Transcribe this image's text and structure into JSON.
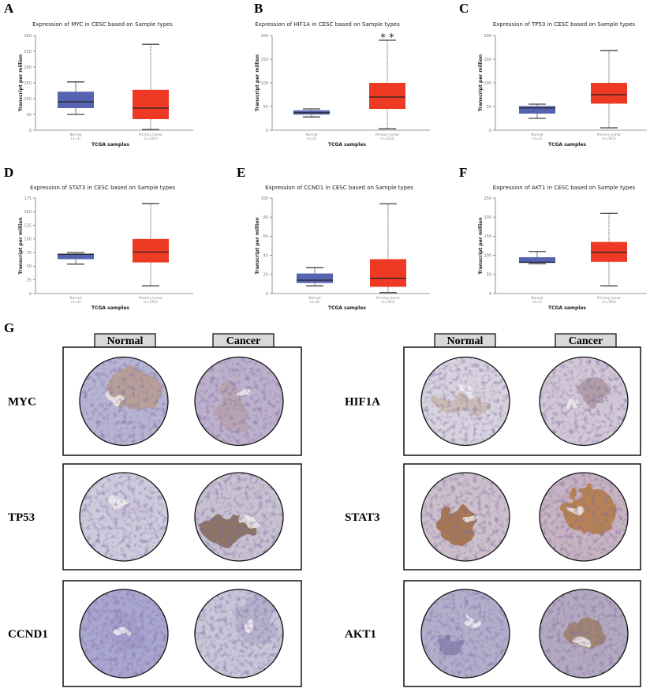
{
  "chart_data": [
    {
      "panel": "A",
      "type": "box",
      "title": "Expression of MYC in CESC based on Sample types",
      "ylabel": "Transcript per million",
      "xlabel": "TCGA samples",
      "categories": [
        "Normal",
        "Primary tumor"
      ],
      "category_counts": [
        "(n=3)",
        "(n=303)"
      ],
      "ylim": [
        0,
        300
      ],
      "yticks": [
        0,
        50,
        100,
        150,
        200,
        250,
        300
      ],
      "annotation": "",
      "boxes": [
        {
          "min": 50,
          "q1": 70,
          "median": 90,
          "q3": 122,
          "max": 153,
          "color": "#5663b0"
        },
        {
          "min": 2,
          "q1": 35,
          "median": 70,
          "q3": 128,
          "max": 272,
          "color": "#ee3a24"
        }
      ]
    },
    {
      "panel": "B",
      "type": "box",
      "title": "Expression of HIF1A in CESC based on Sample types",
      "ylabel": "Transcript per million",
      "xlabel": "TCGA samples",
      "categories": [
        "Normal",
        "Primary tumor"
      ],
      "category_counts": [
        "(n=3)",
        "(n=303)"
      ],
      "ylim": [
        0,
        200
      ],
      "yticks": [
        0,
        50,
        100,
        150,
        200
      ],
      "annotation": "* *",
      "boxes": [
        {
          "min": 28,
          "q1": 33,
          "median": 37,
          "q3": 42,
          "max": 45,
          "color": "#5663b0"
        },
        {
          "min": 3,
          "q1": 45,
          "median": 70,
          "q3": 100,
          "max": 190,
          "color": "#ee3a24"
        }
      ]
    },
    {
      "panel": "C",
      "type": "box",
      "title": "Expression of TP53 in CESC based on Sample types",
      "ylabel": "Transcript per million",
      "xlabel": "TCGA samples",
      "categories": [
        "Normal",
        "Primary tumor"
      ],
      "category_counts": [
        "(n=3)",
        "(n=303)"
      ],
      "ylim": [
        0,
        200
      ],
      "yticks": [
        0,
        50,
        100,
        150,
        200
      ],
      "annotation": "",
      "boxes": [
        {
          "min": 25,
          "q1": 35,
          "median": 47,
          "q3": 51,
          "max": 55,
          "color": "#5663b0"
        },
        {
          "min": 5,
          "q1": 56,
          "median": 75,
          "q3": 100,
          "max": 168,
          "color": "#ee3a24"
        }
      ]
    },
    {
      "panel": "D",
      "type": "box",
      "title": "Expression of STAT3 in CESC based on Sample types",
      "ylabel": "Transcript per million",
      "xlabel": "TCGA samples",
      "categories": [
        "Normal",
        "Primary tumor"
      ],
      "category_counts": [
        "(n=3)",
        "(n=303)"
      ],
      "ylim": [
        0,
        175
      ],
      "yticks": [
        0,
        25,
        50,
        75,
        100,
        125,
        150,
        175
      ],
      "annotation": "",
      "boxes": [
        {
          "min": 54,
          "q1": 63,
          "median": 72,
          "q3": 73,
          "max": 75,
          "color": "#5663b0"
        },
        {
          "min": 14,
          "q1": 57,
          "median": 76,
          "q3": 100,
          "max": 165,
          "color": "#ee3a24"
        }
      ]
    },
    {
      "panel": "E",
      "type": "box",
      "title": "Expression of CCND1 in CESC based on Sample types",
      "ylabel": "Transcript per million",
      "xlabel": "TCGA samples",
      "categories": [
        "Normal",
        "Primary tumor"
      ],
      "category_counts": [
        "(n=3)",
        "(n=303)"
      ],
      "ylim": [
        0,
        100
      ],
      "yticks": [
        0,
        20,
        40,
        60,
        80,
        100
      ],
      "annotation": "",
      "boxes": [
        {
          "min": 8,
          "q1": 11,
          "median": 14,
          "q3": 21,
          "max": 27,
          "color": "#5663b0"
        },
        {
          "min": 1,
          "q1": 7,
          "median": 16,
          "q3": 36,
          "max": 94,
          "color": "#ee3a24"
        }
      ]
    },
    {
      "panel": "F",
      "type": "box",
      "title": "Expression of AKT1 in CESC based on Sample types",
      "ylabel": "Transcript per million",
      "xlabel": "TCGA samples",
      "categories": [
        "Normal",
        "Primary tumor"
      ],
      "category_counts": [
        "(n=3)",
        "(n=303)"
      ],
      "ylim": [
        0,
        250
      ],
      "yticks": [
        0,
        50,
        100,
        150,
        200,
        250
      ],
      "annotation": "",
      "boxes": [
        {
          "min": 78,
          "q1": 80,
          "median": 82,
          "q3": 95,
          "max": 110,
          "color": "#5663b0"
        },
        {
          "min": 20,
          "q1": 83,
          "median": 108,
          "q3": 135,
          "max": 210,
          "color": "#ee3a24"
        }
      ]
    }
  ],
  "ihc": {
    "panel": "G",
    "headers": [
      "Normal",
      "Cancer"
    ],
    "rows": [
      {
        "gene": "MYC",
        "normal_tint": "#b7b5d3",
        "cancer_tint": "#bdb1cc",
        "normal_stain": "#b89a86",
        "cancer_stain": "#b8a0a8"
      },
      {
        "gene": "HIF1A",
        "normal_tint": "#d8d3df",
        "cancer_tint": "#d2c7d6",
        "normal_stain": "#c8b6a8",
        "cancer_stain": "#a89098"
      },
      {
        "gene": "TP53",
        "normal_tint": "#cfcbdc",
        "cancer_tint": "#c8c2d2",
        "normal_stain": "#c9c2d8",
        "cancer_stain": "#7a5a40"
      },
      {
        "gene": "STAT3",
        "normal_tint": "#cdbfcc",
        "cancer_tint": "#c7b3c2",
        "normal_stain": "#9a5f2c",
        "cancer_stain": "#b0702e"
      },
      {
        "gene": "CCND1",
        "normal_tint": "#a9a6cf",
        "cancer_tint": "#c9c6d8",
        "normal_stain": "#a09ac8",
        "cancer_stain": "#b0aac8"
      },
      {
        "gene": "AKT1",
        "normal_tint": "#b3aecb",
        "cancer_tint": "#b4a9c0",
        "normal_stain": "#7e7aa8",
        "cancer_stain": "#9a7a58"
      }
    ]
  }
}
